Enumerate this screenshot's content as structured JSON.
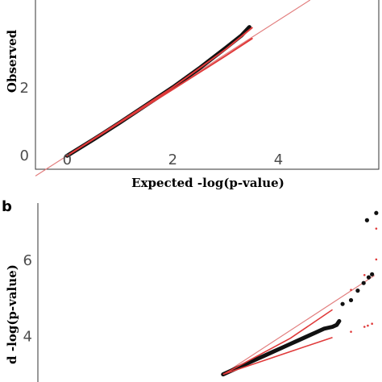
{
  "chart_data": [
    {
      "type": "scatter",
      "panel_label": "",
      "xlabel": "Expected -log(p-value)",
      "ylabel": "Observed",
      "xlim": [
        -0.6,
        5.9
      ],
      "ylim": [
        -0.4,
        4.6
      ],
      "x_ticks": [
        0,
        2,
        4
      ],
      "y_ticks": [
        0,
        2
      ],
      "grid": false,
      "diagonal": {
        "from": [
          -0.6,
          -0.6
        ],
        "to": [
          4.6,
          4.6
        ]
      },
      "series": [
        {
          "role": "observed",
          "color": "#111111",
          "points": [
            [
              0.0,
              0.0
            ],
            [
              0.5,
              0.48
            ],
            [
              1.0,
              0.98
            ],
            [
              1.5,
              1.5
            ],
            [
              2.0,
              2.02
            ],
            [
              2.5,
              2.58
            ],
            [
              3.0,
              3.18
            ],
            [
              3.3,
              3.55
            ],
            [
              3.45,
              3.8
            ]
          ]
        },
        {
          "role": "confidence-upper",
          "color": "#e03a3a",
          "points": [
            [
              0.0,
              0.0
            ],
            [
              1.0,
              1.0
            ],
            [
              2.0,
              2.02
            ],
            [
              3.0,
              3.14
            ],
            [
              3.5,
              3.78
            ]
          ]
        },
        {
          "role": "confidence-lower",
          "color": "#e03a3a",
          "points": [
            [
              0.0,
              0.0
            ],
            [
              1.0,
              0.98
            ],
            [
              2.0,
              1.96
            ],
            [
              3.0,
              2.95
            ],
            [
              3.5,
              3.46
            ]
          ]
        }
      ]
    },
    {
      "type": "scatter",
      "panel_label": "b",
      "xlabel": "",
      "ylabel": "d -log(p-value)",
      "xlim": [
        0,
        4.05
      ],
      "ylim": [
        2.8,
        7.5
      ],
      "x_ticks": [],
      "y_ticks": [
        4,
        6
      ],
      "grid": false,
      "diagonal": {
        "from": [
          2.2,
          3.0
        ],
        "to": [
          4.0,
          5.6
        ]
      },
      "series": [
        {
          "role": "observed",
          "color": "#111111",
          "points": [
            [
              2.2,
              3.0
            ],
            [
              2.3,
              3.1
            ],
            [
              2.4,
              3.2
            ],
            [
              2.5,
              3.3
            ],
            [
              2.6,
              3.4
            ],
            [
              2.7,
              3.5
            ],
            [
              2.8,
              3.6
            ],
            [
              2.9,
              3.7
            ],
            [
              3.0,
              3.8
            ],
            [
              3.1,
              3.9
            ],
            [
              3.2,
              4.0
            ],
            [
              3.3,
              4.1
            ],
            [
              3.4,
              4.2
            ],
            [
              3.5,
              4.25
            ],
            [
              3.55,
              4.3
            ],
            [
              3.58,
              4.4
            ],
            [
              3.62,
              4.85
            ],
            [
              3.72,
              4.95
            ],
            [
              3.8,
              5.2
            ],
            [
              3.87,
              5.4
            ],
            [
              3.93,
              5.55
            ],
            [
              3.97,
              5.63
            ],
            [
              3.91,
              7.05
            ],
            [
              4.02,
              7.24
            ]
          ]
        },
        {
          "role": "confidence-upper",
          "color": "#e03a3a",
          "points": [
            [
              2.2,
              3.0
            ],
            [
              3.0,
              3.95
            ],
            [
              3.5,
              4.7
            ],
            [
              3.72,
              5.22
            ],
            [
              3.88,
              5.61
            ],
            [
              4.02,
              6.02
            ],
            [
              4.02,
              6.83
            ]
          ]
        },
        {
          "role": "confidence-lower",
          "color": "#e03a3a",
          "points": [
            [
              2.2,
              3.0
            ],
            [
              3.0,
              3.6
            ],
            [
              3.5,
              3.97
            ],
            [
              3.72,
              4.12
            ],
            [
              3.88,
              4.25
            ],
            [
              3.92,
              4.28
            ],
            [
              3.97,
              4.33
            ]
          ]
        }
      ]
    }
  ]
}
